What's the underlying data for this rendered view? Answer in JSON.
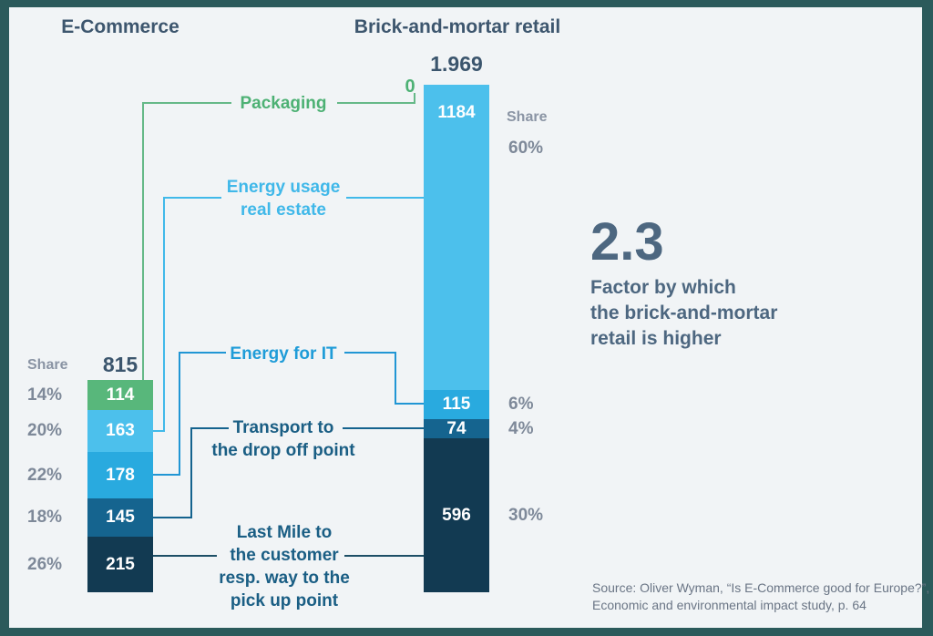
{
  "headers": {
    "left": "E-Commerce",
    "right": "Brick-and-mortar retail"
  },
  "share_header": "Share",
  "factor": {
    "value": "2.3",
    "caption_lines": [
      "Factor by which",
      "the brick-and-mortar",
      "retail is higher"
    ]
  },
  "source_lines": [
    "Source: Oliver Wyman, “Is E-Commerce good for Europe?”,",
    "Economic and environmental impact study, p. 64"
  ],
  "colors": {
    "frame_border": "#2b5a5b",
    "background": "#f1f4f6",
    "title_text": "#3d566e",
    "share_text": "#7e8999",
    "factor_text": "#4d6780"
  },
  "chart_data": {
    "type": "bar",
    "stacked": true,
    "categories": [
      "Packaging",
      "Energy usage real estate",
      "Energy for IT",
      "Transport to the drop off point",
      "Last Mile to the customer resp. way to the pick up point"
    ],
    "category_labels": [
      {
        "lines": [
          "Packaging"
        ],
        "color": "#4db174"
      },
      {
        "lines": [
          "Energy usage",
          "real estate"
        ],
        "color": "#40b8e9"
      },
      {
        "lines": [
          "Energy for IT"
        ],
        "color": "#1f9cd8"
      },
      {
        "lines": [
          "Transport to",
          "the drop off point"
        ],
        "color": "#1a5e84"
      },
      {
        "lines": [
          "Last Mile to",
          "the customer",
          "resp. way to the",
          "pick up point"
        ],
        "color": "#1a5e84"
      }
    ],
    "segment_colors": [
      "#58b77b",
      "#4cc0ec",
      "#29aadf",
      "#15648f",
      "#123a52"
    ],
    "series": [
      {
        "name": "E-Commerce",
        "total_label": "815",
        "values": [
          114,
          163,
          178,
          145,
          215
        ],
        "shares": [
          "14%",
          "20%",
          "22%",
          "18%",
          "26%"
        ]
      },
      {
        "name": "Brick-and-mortar retail",
        "total_label": "1.969",
        "zero_label": "0",
        "values": [
          0,
          1184,
          115,
          74,
          596
        ],
        "shares": [
          "",
          "60%",
          "6%",
          "4%",
          "30%"
        ]
      }
    ]
  }
}
